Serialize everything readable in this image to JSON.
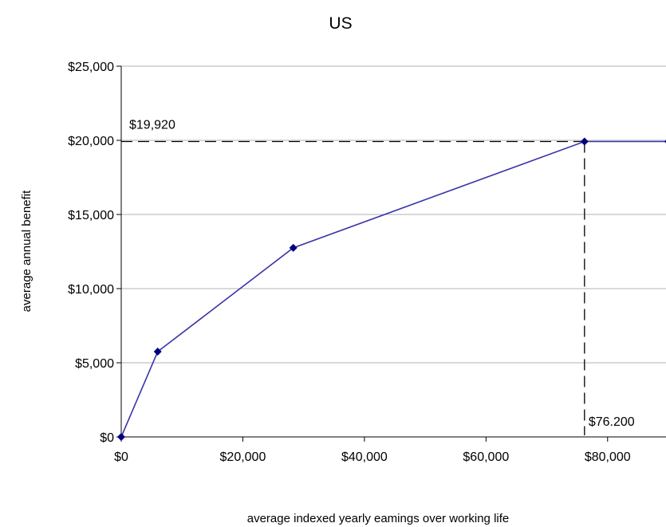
{
  "chart_data": {
    "type": "line",
    "title": "US",
    "xlabel": "average indexed yearly eamings over working life",
    "ylabel": "average annual benefit",
    "xlim": [
      0,
      90000
    ],
    "ylim": [
      0,
      25000
    ],
    "x_ticks": [
      {
        "value": 0,
        "label": "$0"
      },
      {
        "value": 20000,
        "label": "$20,000"
      },
      {
        "value": 40000,
        "label": "$40,000"
      },
      {
        "value": 60000,
        "label": "$60,000"
      },
      {
        "value": 80000,
        "label": "$80,000"
      }
    ],
    "y_ticks": [
      {
        "value": 0,
        "label": "$0"
      },
      {
        "value": 5000,
        "label": "$5,000"
      },
      {
        "value": 10000,
        "label": "$10,000"
      },
      {
        "value": 15000,
        "label": "$15,000"
      },
      {
        "value": 20000,
        "label": "$20,000"
      },
      {
        "value": 25000,
        "label": "$25,000"
      }
    ],
    "grid": "horizontal",
    "legend": "none",
    "series": [
      {
        "color": "#3a35a8",
        "marker_color": "#000080",
        "x": [
          0,
          6000,
          28300,
          76200,
          90000
        ],
        "y": [
          0,
          5750,
          12750,
          19920,
          19920
        ]
      }
    ],
    "annotations": [
      {
        "label": "$19,920",
        "x": 76200,
        "y": 19920,
        "kind": "horizontal-reference"
      },
      {
        "label": "$76.200",
        "x": 76200,
        "y": 19920,
        "kind": "vertical-reference"
      }
    ]
  }
}
